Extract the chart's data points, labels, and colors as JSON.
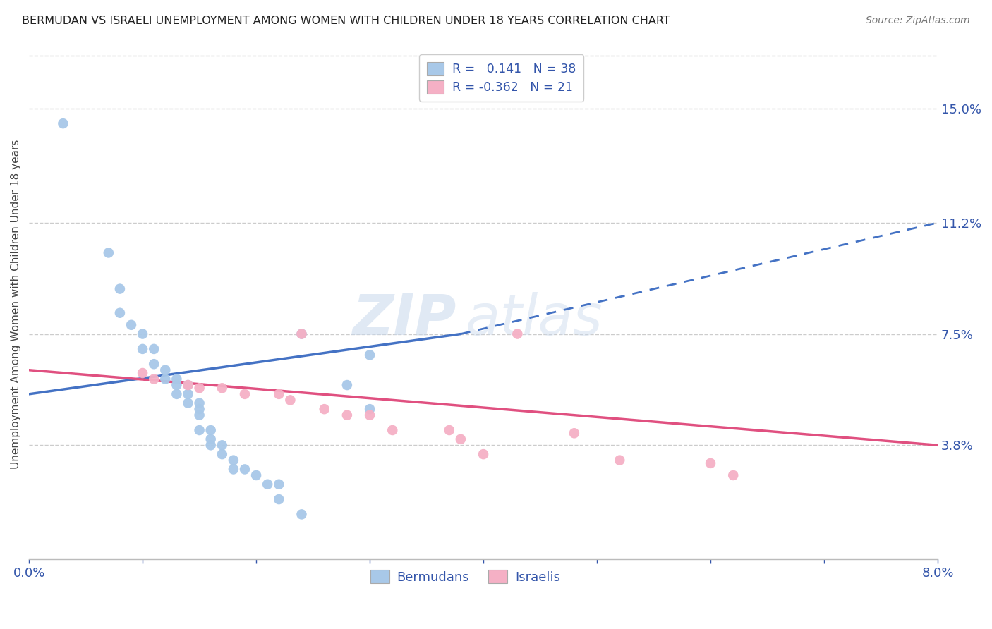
{
  "title": "BERMUDAN VS ISRAELI UNEMPLOYMENT AMONG WOMEN WITH CHILDREN UNDER 18 YEARS CORRELATION CHART",
  "source": "Source: ZipAtlas.com",
  "ylabel": "Unemployment Among Women with Children Under 18 years",
  "xlim": [
    0.0,
    0.08
  ],
  "ylim": [
    0.0,
    0.17
  ],
  "ytick_right_labels": [
    "15.0%",
    "11.2%",
    "7.5%",
    "3.8%"
  ],
  "ytick_right_values": [
    0.15,
    0.112,
    0.075,
    0.038
  ],
  "bermudans_color": "#a8c8e8",
  "israelis_color": "#f5b0c5",
  "bermudans_line_color": "#4472c4",
  "israelis_line_color": "#e05080",
  "legend_text_color": "#3355aa",
  "R_bermudans": 0.141,
  "N_bermudans": 38,
  "R_israelis": -0.362,
  "N_israelis": 21,
  "bermudans_x": [
    0.003,
    0.007,
    0.008,
    0.008,
    0.009,
    0.01,
    0.01,
    0.011,
    0.011,
    0.012,
    0.012,
    0.013,
    0.013,
    0.013,
    0.014,
    0.014,
    0.014,
    0.015,
    0.015,
    0.015,
    0.015,
    0.016,
    0.016,
    0.016,
    0.017,
    0.017,
    0.018,
    0.018,
    0.019,
    0.02,
    0.021,
    0.022,
    0.022,
    0.024,
    0.028,
    0.03,
    0.024,
    0.03
  ],
  "bermudans_y": [
    0.145,
    0.102,
    0.09,
    0.082,
    0.078,
    0.075,
    0.07,
    0.07,
    0.065,
    0.063,
    0.06,
    0.06,
    0.058,
    0.055,
    0.058,
    0.055,
    0.052,
    0.052,
    0.05,
    0.048,
    0.043,
    0.043,
    0.04,
    0.038,
    0.038,
    0.035,
    0.033,
    0.03,
    0.03,
    0.028,
    0.025,
    0.025,
    0.02,
    0.015,
    0.058,
    0.05,
    0.075,
    0.068
  ],
  "israelis_x": [
    0.01,
    0.011,
    0.014,
    0.015,
    0.017,
    0.019,
    0.022,
    0.023,
    0.024,
    0.026,
    0.028,
    0.03,
    0.032,
    0.037,
    0.038,
    0.04,
    0.043,
    0.048,
    0.052,
    0.06,
    0.062
  ],
  "israelis_y": [
    0.062,
    0.06,
    0.058,
    0.057,
    0.057,
    0.055,
    0.055,
    0.053,
    0.075,
    0.05,
    0.048,
    0.048,
    0.043,
    0.043,
    0.04,
    0.035,
    0.075,
    0.042,
    0.033,
    0.032,
    0.028
  ],
  "watermark_zip": "ZIP",
  "watermark_atlas": "atlas",
  "background_color": "#ffffff",
  "grid_color": "#cccccc",
  "line_split_x": 0.038
}
